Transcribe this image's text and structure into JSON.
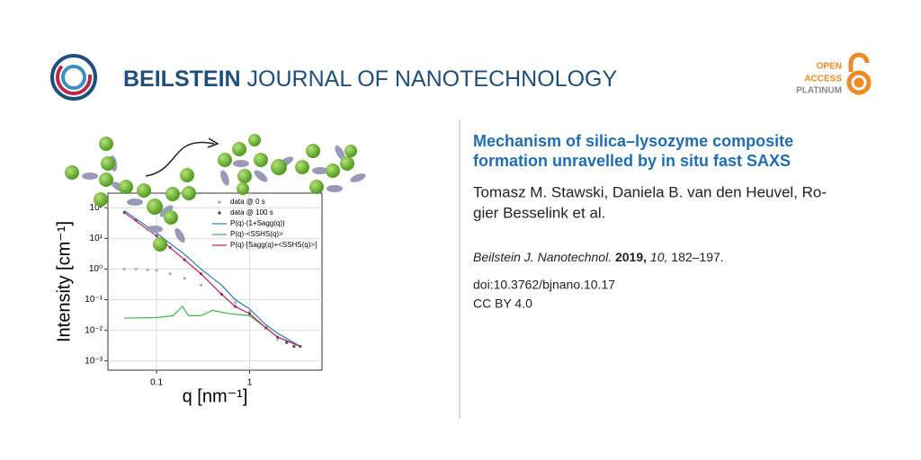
{
  "header": {
    "journal_bold": "BEILSTEIN",
    "journal_rest": "JOURNAL OF NANOTECHNOLOGY",
    "badge": [
      "OPEN",
      "ACCESS",
      "PLATINUM"
    ]
  },
  "figure": {
    "type": "line",
    "xlabel": "q [nm⁻¹]",
    "ylabel": "Intensity [cm⁻¹]",
    "xlog": true,
    "ylog": true,
    "grid": true,
    "xlim": [
      0.03,
      6
    ],
    "ylim": [
      0.0005,
      300
    ],
    "xticks": [
      0.1,
      1
    ],
    "yticks": [
      {
        "value": 100,
        "label": "10²"
      },
      {
        "value": 10,
        "label": "10¹"
      },
      {
        "value": 1,
        "label": "10⁰"
      },
      {
        "value": 0.1,
        "label": "10⁻¹"
      },
      {
        "value": 0.01,
        "label": "10⁻²"
      },
      {
        "value": 0.001,
        "label": "10⁻³"
      }
    ],
    "series": [
      {
        "name": "data @ 0 s",
        "style": "points",
        "color": "#b0b0b0",
        "x": [
          0.045,
          0.06,
          0.08,
          0.1,
          0.14,
          0.2,
          0.3,
          0.5,
          0.7,
          1,
          1.5,
          2,
          2.5,
          3,
          3.5
        ],
        "values": [
          1,
          1,
          0.95,
          0.9,
          0.7,
          0.5,
          0.3,
          0.15,
          0.08,
          0.04,
          0.012,
          0.005,
          0.004,
          0.003,
          0.003
        ]
      },
      {
        "name": "data @ 100 s",
        "style": "points",
        "color": "#555555",
        "x": [
          0.045,
          0.06,
          0.08,
          0.1,
          0.14,
          0.2,
          0.3,
          0.5,
          0.7,
          1,
          1.5,
          2,
          2.5,
          3,
          3.5
        ],
        "values": [
          70,
          40,
          20,
          12,
          5,
          2,
          0.7,
          0.15,
          0.06,
          0.035,
          0.012,
          0.006,
          0.004,
          0.003,
          0.003
        ]
      },
      {
        "name": "P(q)·(1+Sagg(q))",
        "style": "line",
        "color": "#2a7ab8",
        "x": [
          0.045,
          0.1,
          0.2,
          0.3,
          0.5,
          0.7,
          1,
          1.5,
          2,
          3.5
        ],
        "values": [
          80,
          15,
          3,
          1,
          0.3,
          0.1,
          0.05,
          0.015,
          0.008,
          0.003
        ]
      },
      {
        "name": "P(q)·<SSHS(q)>",
        "style": "line",
        "color": "#3cb44b",
        "x": [
          0.045,
          0.1,
          0.15,
          0.19,
          0.22,
          0.3,
          0.4,
          0.6,
          1,
          1.5,
          2,
          3.5
        ],
        "values": [
          0.025,
          0.026,
          0.03,
          0.06,
          0.03,
          0.03,
          0.045,
          0.035,
          0.03,
          0.012,
          0.006,
          0.003
        ]
      },
      {
        "name": "P(q)·[Sagg(q)+<SSHS(q)>]",
        "style": "line",
        "color": "#c2185b",
        "x": [
          0.045,
          0.1,
          0.2,
          0.3,
          0.5,
          0.7,
          1,
          1.5,
          2,
          3.5
        ],
        "values": [
          70,
          12,
          2,
          0.7,
          0.15,
          0.06,
          0.035,
          0.012,
          0.006,
          0.003
        ]
      }
    ]
  },
  "article": {
    "title_lines": [
      "Mechanism of silica–lysozyme composite",
      "formation unravelled by in situ fast SAXS"
    ],
    "author_lines": [
      "Tomasz M. Stawski, Daniela B. van den Heuvel, Ro-",
      "gier Besselink et al."
    ],
    "citation": {
      "journal": "Beilstein J. Nanotechnol.",
      "year": "2019,",
      "volume": "10,",
      "pages": "182–197."
    },
    "doi": "doi:10.3762/bjnano.10.17",
    "license": "CC BY 4.0"
  }
}
